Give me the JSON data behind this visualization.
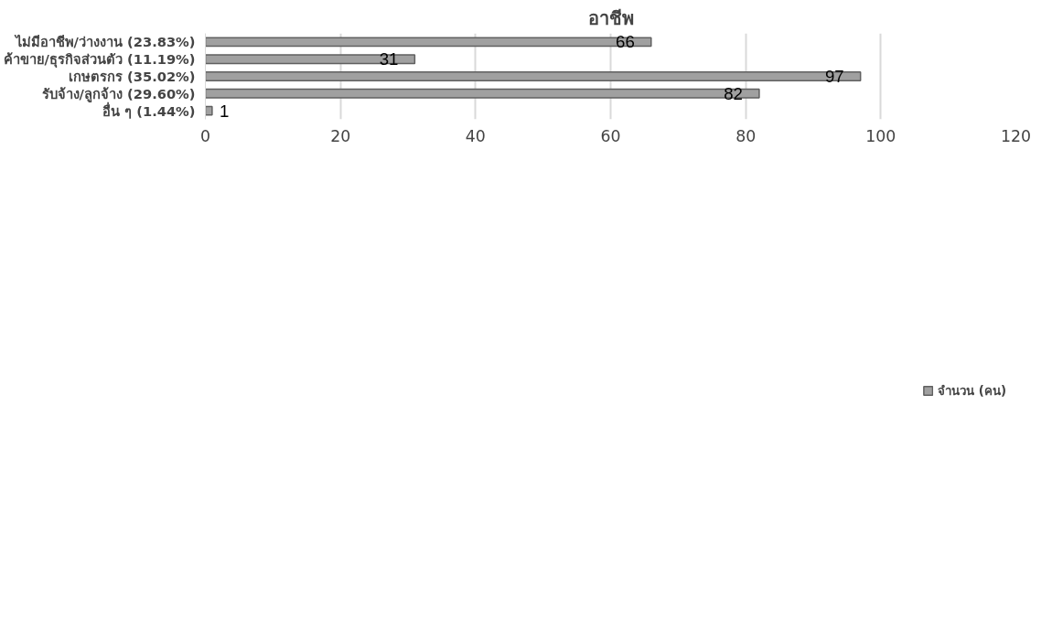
{
  "chart_data": {
    "type": "bar",
    "orientation": "horizontal",
    "title": "อาชีพ",
    "categories": [
      "ไม่มีอาชีพ/ว่างงาน (23.83%)",
      "ค้าขาย/ธุรกิจส่วนตัว (11.19%)",
      "เกษตรกร (35.02%)",
      "รับจ้าง/ลูกจ้าง (29.60%)",
      "อื่น ๆ (1.44%)"
    ],
    "series": [
      {
        "name": "จำนวน (คน)",
        "color": "#a0a0a0",
        "values": [
          66,
          31,
          97,
          82,
          1
        ]
      }
    ],
    "xlim": [
      0,
      120
    ],
    "xticks": [
      0,
      20,
      40,
      60,
      80,
      100,
      120
    ],
    "grid": "x",
    "legend": "bottom",
    "data_labels": true
  }
}
